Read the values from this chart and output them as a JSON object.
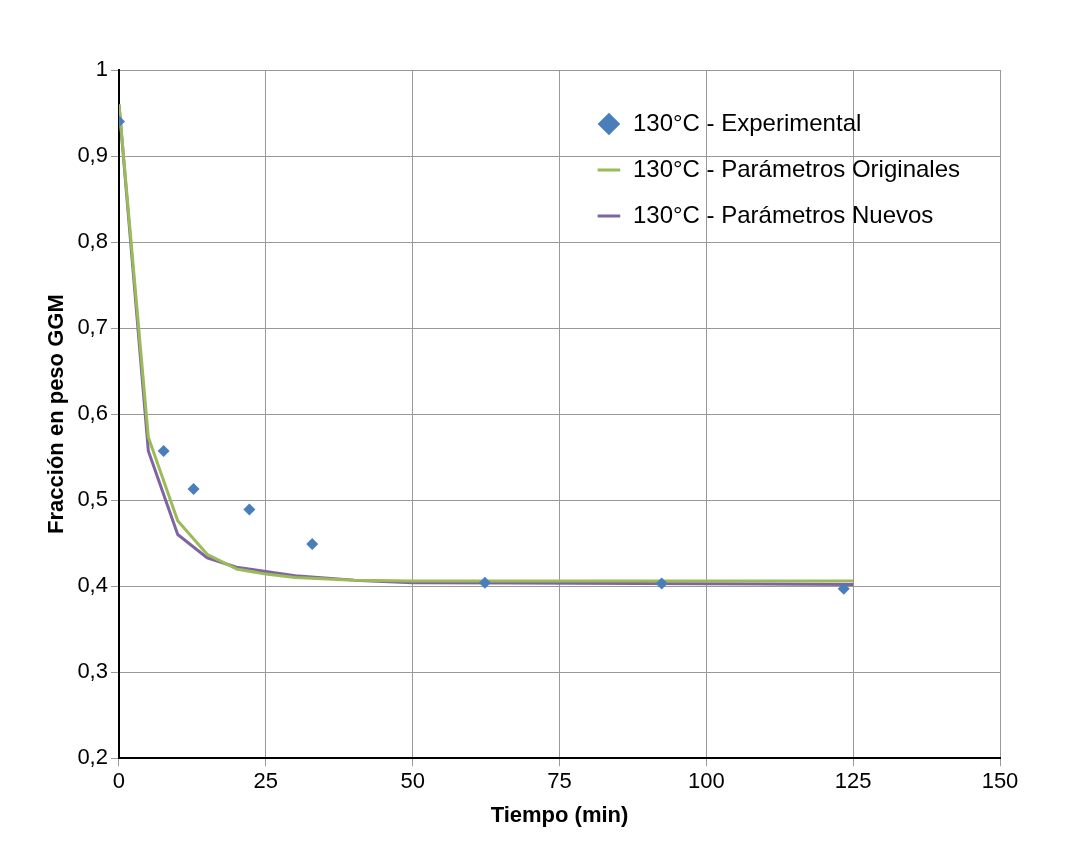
{
  "chart_data": {
    "type": "scatter",
    "xlabel": "Tiempo (min)",
    "ylabel": "Fracción en peso GGM",
    "xlim": [
      0,
      150
    ],
    "xticks": [
      0,
      25,
      50,
      75,
      100,
      125,
      150
    ],
    "ylim": [
      0.2,
      1
    ],
    "yticks": [
      {
        "value": 0.2,
        "label": "0,2"
      },
      {
        "value": 0.3,
        "label": "0,3"
      },
      {
        "value": 0.4,
        "label": "0,4"
      },
      {
        "value": 0.5,
        "label": "0,5"
      },
      {
        "value": 0.6,
        "label": "0,6"
      },
      {
        "value": 0.7,
        "label": "0,7"
      },
      {
        "value": 0.8,
        "label": "0,8"
      },
      {
        "value": 0.9,
        "label": "0,9"
      },
      {
        "value": 1,
        "label": "1"
      }
    ],
    "grid": true,
    "legend": "top right",
    "series": [
      {
        "name": "130°C - Experimental",
        "marker": "diamond",
        "color": "#4a7ebb",
        "x": [
          0,
          7.6,
          12.7,
          22.2,
          32.9,
          62.3,
          92.4,
          123.4
        ],
        "values": [
          0.94,
          0.557,
          0.513,
          0.489,
          0.449,
          0.404,
          0.403,
          0.397
        ]
      },
      {
        "name": "130°C - Parámetros Originales",
        "type": "line",
        "marker": "none",
        "color": "#9bbb59",
        "x": [
          0,
          5,
          10,
          15,
          20,
          25,
          30,
          40,
          50,
          125
        ],
        "values": [
          0.96,
          0.573,
          0.476,
          0.437,
          0.42,
          0.414,
          0.41,
          0.407,
          0.406,
          0.406
        ]
      },
      {
        "name": "130°C - Parámetros Nuevos",
        "type": "line",
        "marker": "none",
        "color": "#8064a2",
        "x": [
          0,
          5,
          10,
          15,
          20,
          25,
          30,
          40,
          50,
          125
        ],
        "values": [
          0.96,
          0.557,
          0.46,
          0.433,
          0.422,
          0.417,
          0.412,
          0.407,
          0.404,
          0.402
        ]
      }
    ]
  }
}
